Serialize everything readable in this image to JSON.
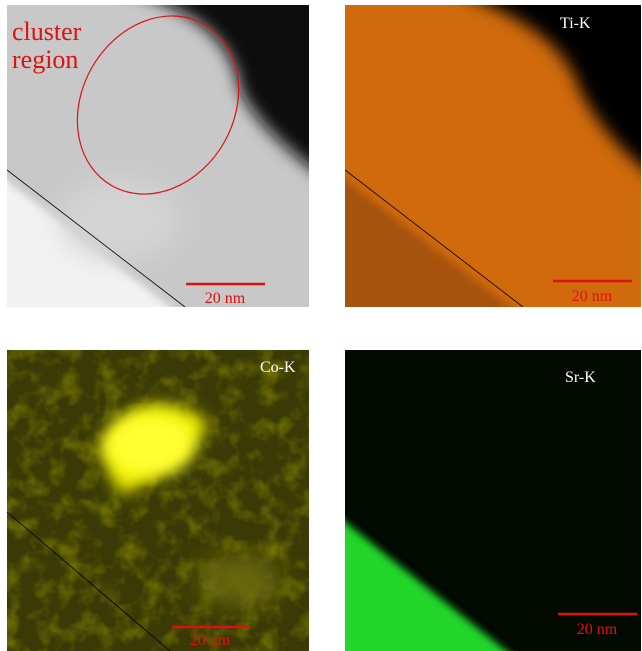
{
  "panels": [
    {
      "labels": [
        "cluster",
        "region"
      ],
      "scale_bar": "20 nm"
    },
    {
      "label": "Ti-K",
      "scale_bar": "20 nm"
    },
    {
      "label": "Co-K",
      "scale_bar": "20 nm"
    },
    {
      "label": "Sr-K",
      "scale_bar": "20 nm"
    }
  ]
}
